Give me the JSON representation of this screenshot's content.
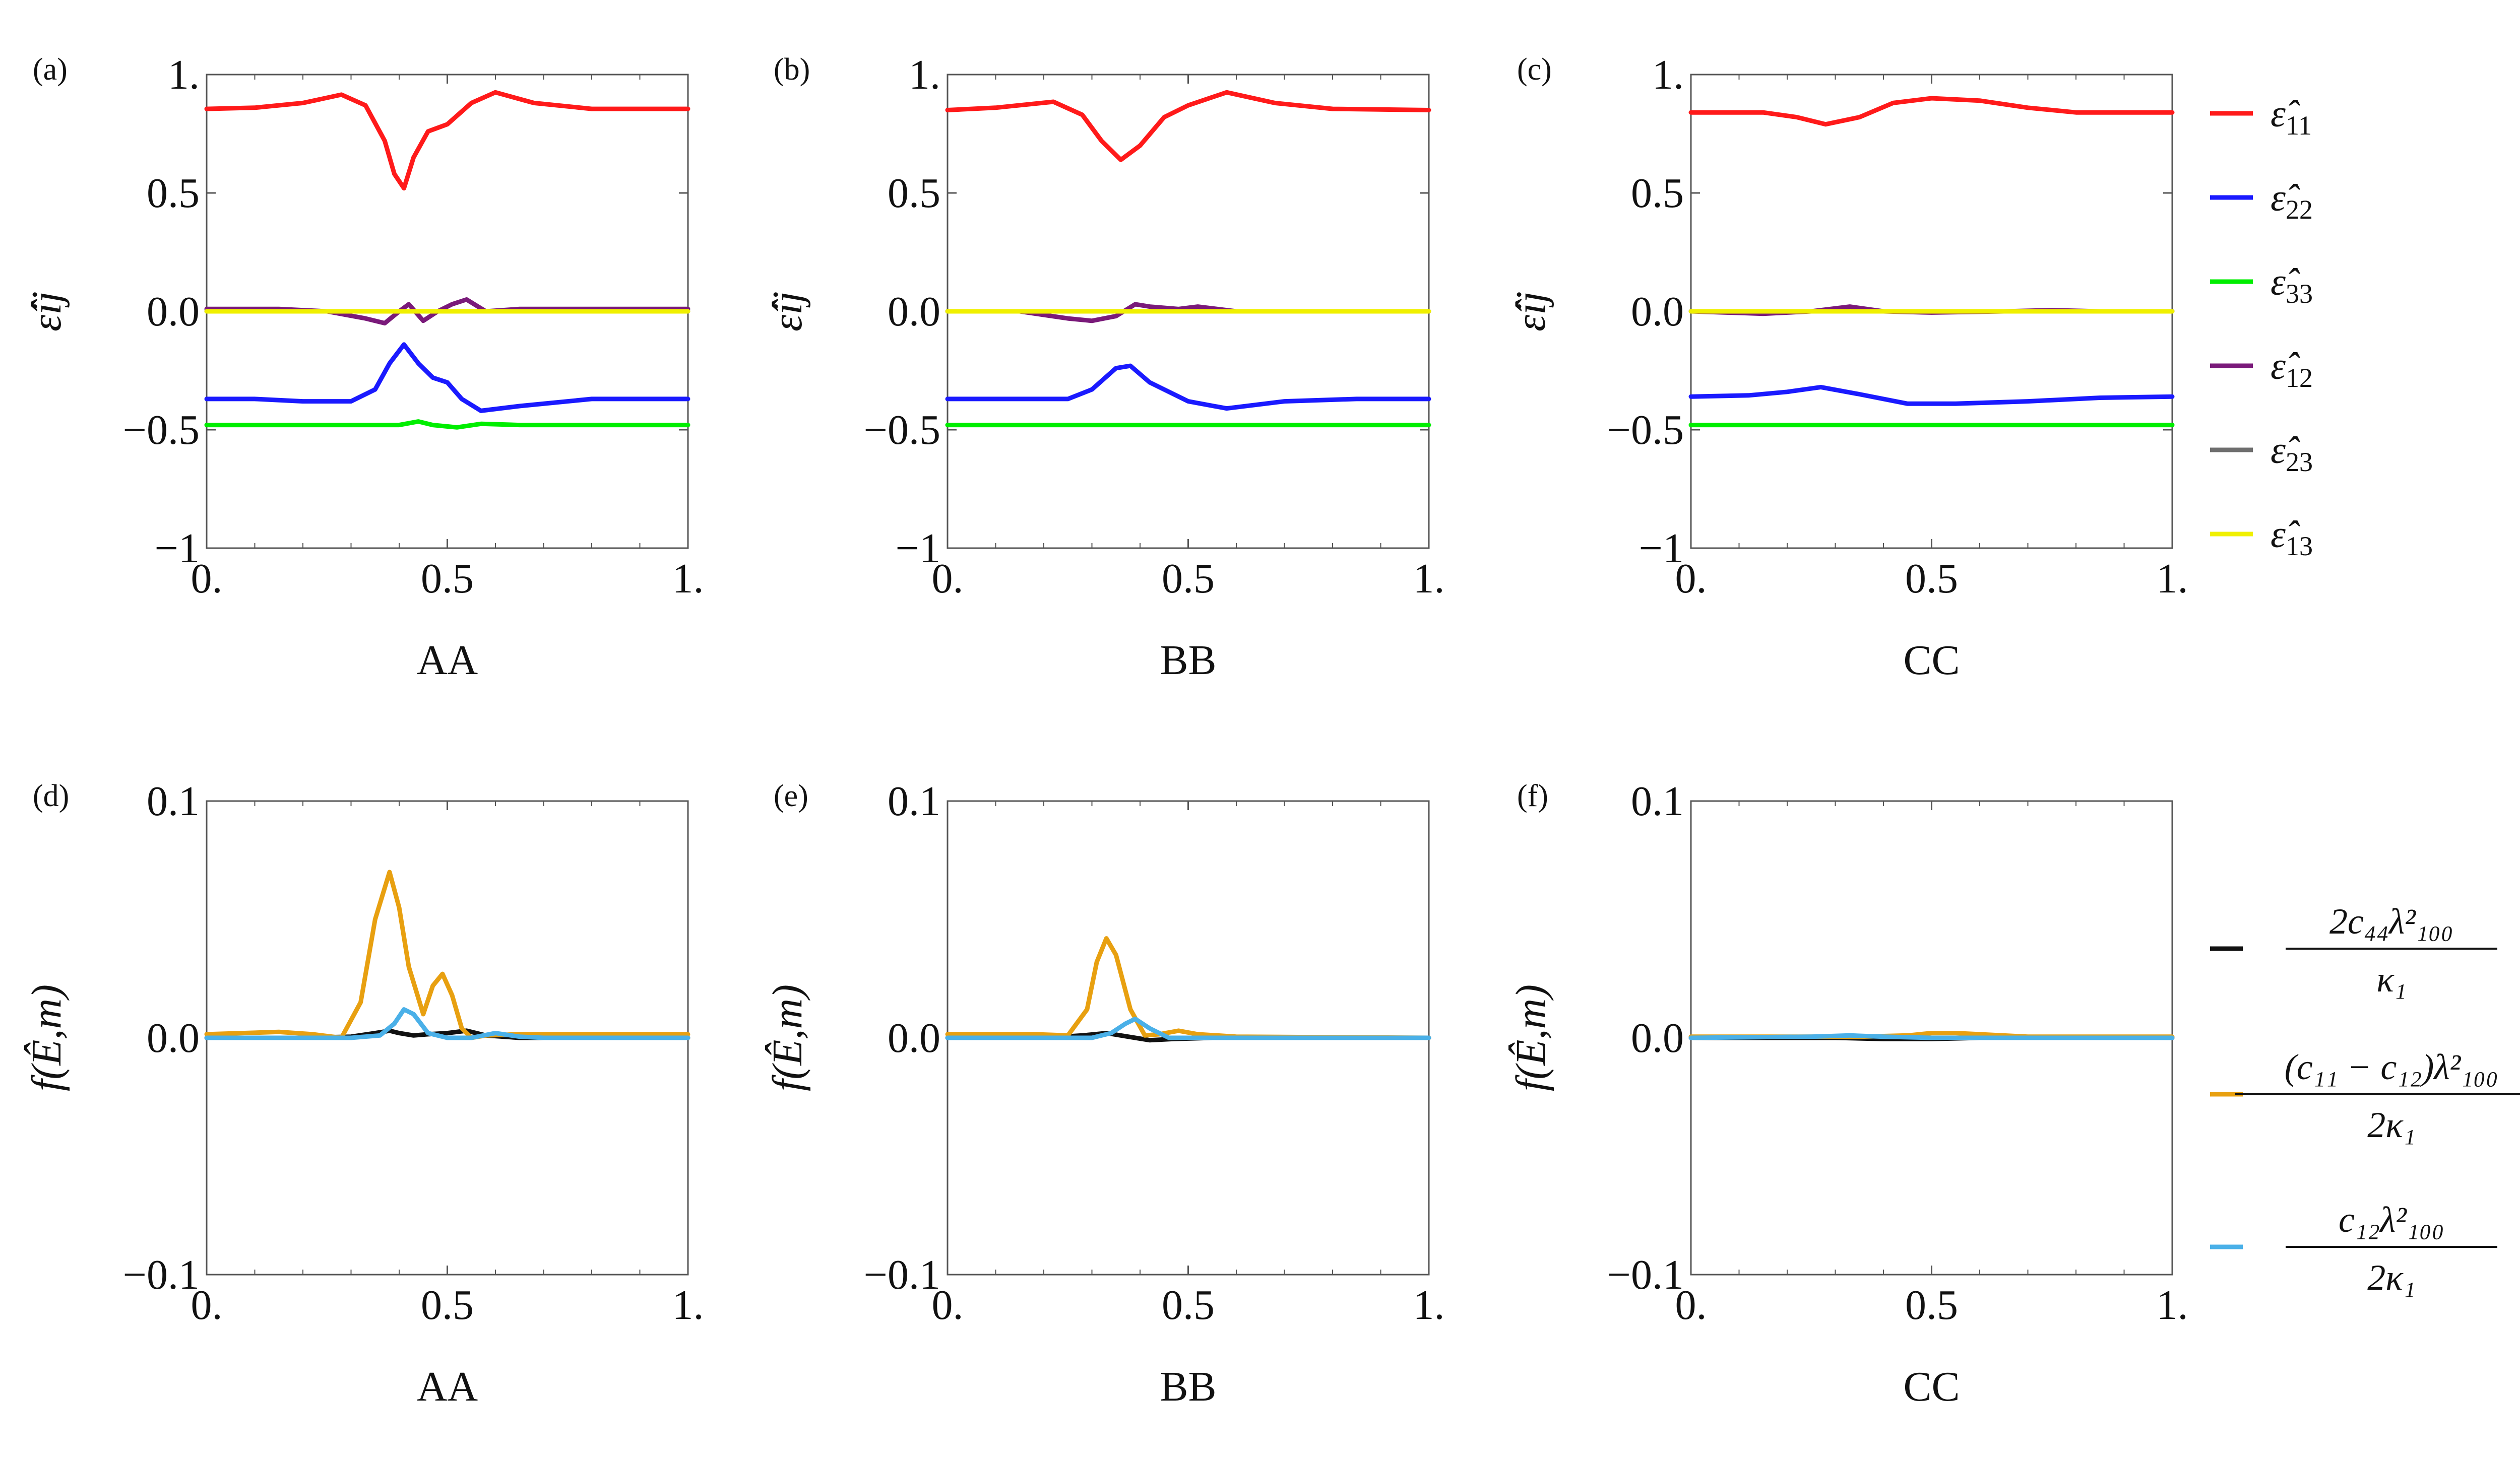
{
  "chart_data": [
    {
      "panel": "(a)",
      "type": "line",
      "xlabel": "AA",
      "ylabel": "ε̂ij",
      "xlim": [
        0,
        1
      ],
      "ylim": [
        -1,
        1
      ],
      "xticks": [
        "0.",
        "0.5",
        "1."
      ],
      "yticks": [
        "−1",
        "−0.5",
        "0.0",
        "0.5",
        "1."
      ],
      "series": [
        {
          "name": "ε̂11",
          "color": "#ff1a1a",
          "x": [
            0,
            0.1,
            0.2,
            0.28,
            0.33,
            0.37,
            0.39,
            0.41,
            0.43,
            0.46,
            0.5,
            0.55,
            0.6,
            0.68,
            0.8,
            1.0
          ],
          "y": [
            0.855,
            0.86,
            0.88,
            0.915,
            0.87,
            0.72,
            0.58,
            0.52,
            0.65,
            0.76,
            0.79,
            0.88,
            0.925,
            0.88,
            0.855,
            0.855
          ]
        },
        {
          "name": "ε̂22",
          "color": "#1a1aff",
          "x": [
            0,
            0.1,
            0.2,
            0.3,
            0.35,
            0.38,
            0.41,
            0.44,
            0.47,
            0.5,
            0.53,
            0.57,
            0.65,
            0.8,
            1.0
          ],
          "y": [
            -0.37,
            -0.37,
            -0.38,
            -0.38,
            -0.33,
            -0.22,
            -0.14,
            -0.22,
            -0.28,
            -0.3,
            -0.37,
            -0.42,
            -0.4,
            -0.37,
            -0.37
          ]
        },
        {
          "name": "ε̂33",
          "color": "#00ee00",
          "x": [
            0,
            0.3,
            0.4,
            0.44,
            0.47,
            0.52,
            0.57,
            0.65,
            1.0
          ],
          "y": [
            -0.48,
            -0.48,
            -0.48,
            -0.465,
            -0.48,
            -0.49,
            -0.475,
            -0.48,
            -0.48
          ]
        },
        {
          "name": "ε̂12",
          "color": "#7a1a7a",
          "x": [
            0,
            0.15,
            0.25,
            0.33,
            0.37,
            0.4,
            0.42,
            0.45,
            0.48,
            0.51,
            0.54,
            0.58,
            0.65,
            1.0
          ],
          "y": [
            0.01,
            0.01,
            0.0,
            -0.03,
            -0.05,
            0.0,
            0.03,
            -0.04,
            0.0,
            0.03,
            0.05,
            0.0,
            0.01,
            0.01
          ]
        },
        {
          "name": "ε̂23",
          "color": "#6e6e6e",
          "x": [
            0,
            1.0
          ],
          "y": [
            0.0,
            0.0
          ]
        },
        {
          "name": "ε̂13",
          "color": "#f0f000",
          "x": [
            0,
            1.0
          ],
          "y": [
            0.0,
            0.0
          ]
        }
      ]
    },
    {
      "panel": "(b)",
      "type": "line",
      "xlabel": "BB",
      "ylabel": "ε̂ij",
      "xlim": [
        0,
        1
      ],
      "ylim": [
        -1,
        1
      ],
      "xticks": [
        "0.",
        "0.5",
        "1."
      ],
      "yticks": [
        "−1",
        "−0.5",
        "0.0",
        "0.5",
        "1."
      ],
      "series": [
        {
          "name": "ε̂11",
          "color": "#ff1a1a",
          "x": [
            0,
            0.1,
            0.22,
            0.28,
            0.32,
            0.36,
            0.4,
            0.45,
            0.5,
            0.58,
            0.68,
            0.8,
            1.0
          ],
          "y": [
            0.85,
            0.86,
            0.885,
            0.83,
            0.72,
            0.64,
            0.7,
            0.82,
            0.87,
            0.925,
            0.88,
            0.855,
            0.85
          ]
        },
        {
          "name": "ε̂22",
          "color": "#1a1aff",
          "x": [
            0,
            0.15,
            0.25,
            0.3,
            0.35,
            0.38,
            0.42,
            0.5,
            0.58,
            0.7,
            0.85,
            1.0
          ],
          "y": [
            -0.37,
            -0.37,
            -0.37,
            -0.33,
            -0.24,
            -0.23,
            -0.3,
            -0.38,
            -0.41,
            -0.38,
            -0.37,
            -0.37
          ]
        },
        {
          "name": "ε̂33",
          "color": "#00ee00",
          "x": [
            0,
            1.0
          ],
          "y": [
            -0.48,
            -0.48
          ]
        },
        {
          "name": "ε̂12",
          "color": "#7a1a7a",
          "x": [
            0,
            0.15,
            0.25,
            0.3,
            0.35,
            0.39,
            0.42,
            0.48,
            0.52,
            0.6,
            1.0
          ],
          "y": [
            0.0,
            0.0,
            -0.03,
            -0.04,
            -0.02,
            0.03,
            0.02,
            0.01,
            0.02,
            0.0,
            0.0
          ]
        },
        {
          "name": "ε̂23",
          "color": "#6e6e6e",
          "x": [
            0,
            1.0
          ],
          "y": [
            0.0,
            0.0
          ]
        },
        {
          "name": "ε̂13",
          "color": "#f0f000",
          "x": [
            0,
            1.0
          ],
          "y": [
            0.0,
            0.0
          ]
        }
      ]
    },
    {
      "panel": "(c)",
      "type": "line",
      "xlabel": "CC",
      "ylabel": "ε̂ij",
      "xlim": [
        0,
        1
      ],
      "ylim": [
        -1,
        1
      ],
      "xticks": [
        "0.",
        "0.5",
        "1."
      ],
      "yticks": [
        "−1",
        "−0.5",
        "0.0",
        "0.5",
        "1."
      ],
      "series": [
        {
          "name": "ε̂11",
          "color": "#ff1a1a",
          "x": [
            0,
            0.15,
            0.22,
            0.28,
            0.35,
            0.42,
            0.5,
            0.6,
            0.7,
            0.8,
            1.0
          ],
          "y": [
            0.84,
            0.84,
            0.82,
            0.79,
            0.82,
            0.88,
            0.9,
            0.89,
            0.86,
            0.84,
            0.84
          ]
        },
        {
          "name": "ε̂22",
          "color": "#1a1aff",
          "x": [
            0,
            0.12,
            0.2,
            0.27,
            0.35,
            0.45,
            0.55,
            0.7,
            0.85,
            1.0
          ],
          "y": [
            -0.36,
            -0.355,
            -0.34,
            -0.32,
            -0.35,
            -0.39,
            -0.39,
            -0.38,
            -0.365,
            -0.36
          ]
        },
        {
          "name": "ε̂33",
          "color": "#00ee00",
          "x": [
            0,
            1.0
          ],
          "y": [
            -0.48,
            -0.48
          ]
        },
        {
          "name": "ε̂12",
          "color": "#7a1a7a",
          "x": [
            0,
            0.15,
            0.25,
            0.33,
            0.4,
            0.5,
            0.65,
            0.75,
            0.85,
            1.0
          ],
          "y": [
            0.0,
            -0.01,
            0.0,
            0.02,
            0.0,
            -0.005,
            0.0,
            0.005,
            0.0,
            0.0
          ]
        },
        {
          "name": "ε̂23",
          "color": "#6e6e6e",
          "x": [
            0,
            1.0
          ],
          "y": [
            0.0,
            0.0
          ]
        },
        {
          "name": "ε̂13",
          "color": "#f0f000",
          "x": [
            0,
            1.0
          ],
          "y": [
            0.0,
            0.0
          ]
        }
      ]
    },
    {
      "panel": "(d)",
      "type": "line",
      "xlabel": "AA",
      "ylabel": "f(Ê,m)",
      "xlim": [
        0,
        1
      ],
      "ylim": [
        -0.1,
        0.1
      ],
      "xticks": [
        "0.",
        "0.5",
        "1."
      ],
      "yticks": [
        "−0.1",
        "0.0",
        "0.1"
      ],
      "series": [
        {
          "name": "2c44λ²100/κ1",
          "color": "#111111",
          "x": [
            0,
            0.2,
            0.3,
            0.35,
            0.38,
            0.4,
            0.43,
            0.46,
            0.5,
            0.54,
            0.58,
            0.65,
            1.0
          ],
          "y": [
            0.0,
            0.0,
            0.0005,
            0.002,
            0.003,
            0.002,
            0.001,
            0.0015,
            0.002,
            0.003,
            0.001,
            0.0,
            0.0
          ]
        },
        {
          "name": "(c11−c12)λ²100/2κ1",
          "color": "#e8a010",
          "x": [
            0,
            0.15,
            0.22,
            0.28,
            0.32,
            0.35,
            0.38,
            0.4,
            0.42,
            0.45,
            0.47,
            0.49,
            0.51,
            0.53,
            0.55,
            0.58,
            0.65,
            0.8,
            1.0
          ],
          "y": [
            0.0015,
            0.0025,
            0.0015,
            0.0,
            0.015,
            0.05,
            0.07,
            0.055,
            0.03,
            0.01,
            0.022,
            0.027,
            0.018,
            0.004,
            0.0,
            0.001,
            0.0015,
            0.0015,
            0.0015
          ]
        },
        {
          "name": "c12λ²100/2κ1",
          "color": "#4ab0e8",
          "x": [
            0,
            0.3,
            0.36,
            0.39,
            0.41,
            0.43,
            0.46,
            0.5,
            0.55,
            0.6,
            0.65,
            0.7,
            1.0
          ],
          "y": [
            0.0,
            0.0,
            0.001,
            0.006,
            0.012,
            0.01,
            0.002,
            0.0,
            0.0,
            0.002,
            0.0005,
            0.0,
            0.0
          ]
        }
      ]
    },
    {
      "panel": "(e)",
      "type": "line",
      "xlabel": "BB",
      "ylabel": "f(Ê,m)",
      "xlim": [
        0,
        1
      ],
      "ylim": [
        -0.1,
        0.1
      ],
      "xticks": [
        "0.",
        "0.5",
        "1."
      ],
      "yticks": [
        "−0.1",
        "0.0",
        "0.1"
      ],
      "series": [
        {
          "name": "2c44λ²100/κ1",
          "color": "#111111",
          "x": [
            0,
            0.2,
            0.28,
            0.33,
            0.36,
            0.39,
            0.42,
            0.47,
            0.55,
            1.0
          ],
          "y": [
            0.0,
            0.0,
            0.001,
            0.002,
            0.001,
            0.0,
            -0.001,
            -0.0005,
            0.0,
            0.0
          ]
        },
        {
          "name": "(c11−c12)λ²100/2κ1",
          "color": "#e8a010",
          "x": [
            0,
            0.18,
            0.25,
            0.29,
            0.31,
            0.33,
            0.35,
            0.38,
            0.41,
            0.44,
            0.48,
            0.52,
            0.6,
            1.0
          ],
          "y": [
            0.0015,
            0.0015,
            0.001,
            0.012,
            0.032,
            0.042,
            0.035,
            0.012,
            0.001,
            0.0015,
            0.003,
            0.0015,
            0.0005,
            0.0
          ]
        },
        {
          "name": "c12λ²100/2κ1",
          "color": "#4ab0e8",
          "x": [
            0,
            0.3,
            0.34,
            0.37,
            0.39,
            0.42,
            0.46,
            0.5,
            1.0
          ],
          "y": [
            0.0,
            0.0,
            0.002,
            0.006,
            0.008,
            0.004,
            0.0,
            0.0,
            0.0
          ]
        }
      ]
    },
    {
      "panel": "(f)",
      "type": "line",
      "xlabel": "CC",
      "ylabel": "f(Ê,m)",
      "xlim": [
        0,
        1
      ],
      "ylim": [
        -0.1,
        0.1
      ],
      "xticks": [
        "0.",
        "0.5",
        "1."
      ],
      "yticks": [
        "−0.1",
        "0.0",
        "0.1"
      ],
      "series": [
        {
          "name": "2c44λ²100/κ1",
          "color": "#111111",
          "x": [
            0,
            0.3,
            0.4,
            0.5,
            0.6,
            0.7,
            1.0
          ],
          "y": [
            0.0,
            0.0,
            -0.0005,
            -0.0005,
            0.0,
            0.0,
            0.0
          ]
        },
        {
          "name": "(c11−c12)λ²100/2κ1",
          "color": "#e8a010",
          "x": [
            0,
            0.25,
            0.35,
            0.45,
            0.5,
            0.55,
            0.6,
            0.7,
            0.85,
            1.0
          ],
          "y": [
            0.0005,
            0.0005,
            0.0005,
            0.001,
            0.002,
            0.002,
            0.0015,
            0.0005,
            0.0005,
            0.0005
          ]
        },
        {
          "name": "c12λ²100/2κ1",
          "color": "#4ab0e8",
          "x": [
            0,
            0.25,
            0.33,
            0.4,
            0.5,
            0.6,
            1.0
          ],
          "y": [
            0.0,
            0.0005,
            0.001,
            0.0005,
            0.0,
            0.0,
            0.0
          ]
        }
      ]
    }
  ],
  "legend_top": [
    {
      "label": "ε̂",
      "sub": "11",
      "color": "#ff1a1a"
    },
    {
      "label": "ε̂",
      "sub": "22",
      "color": "#1a1aff"
    },
    {
      "label": "ε̂",
      "sub": "33",
      "color": "#00ee00"
    },
    {
      "label": "ε̂",
      "sub": "12",
      "color": "#7a1a7a"
    },
    {
      "label": "ε̂",
      "sub": "23",
      "color": "#6e6e6e"
    },
    {
      "label": "ε̂",
      "sub": "13",
      "color": "#f0f000"
    }
  ],
  "legend_bottom": [
    {
      "num": "2c₄₄λ²₁₀₀",
      "den": "κ₁",
      "color": "#111111"
    },
    {
      "num": "(c₁₁ − c₁₂)λ²₁₀₀",
      "den": "2κ₁",
      "color": "#e8a010"
    },
    {
      "num": "c₁₂λ²₁₀₀",
      "den": "2κ₁",
      "color": "#4ab0e8"
    }
  ]
}
